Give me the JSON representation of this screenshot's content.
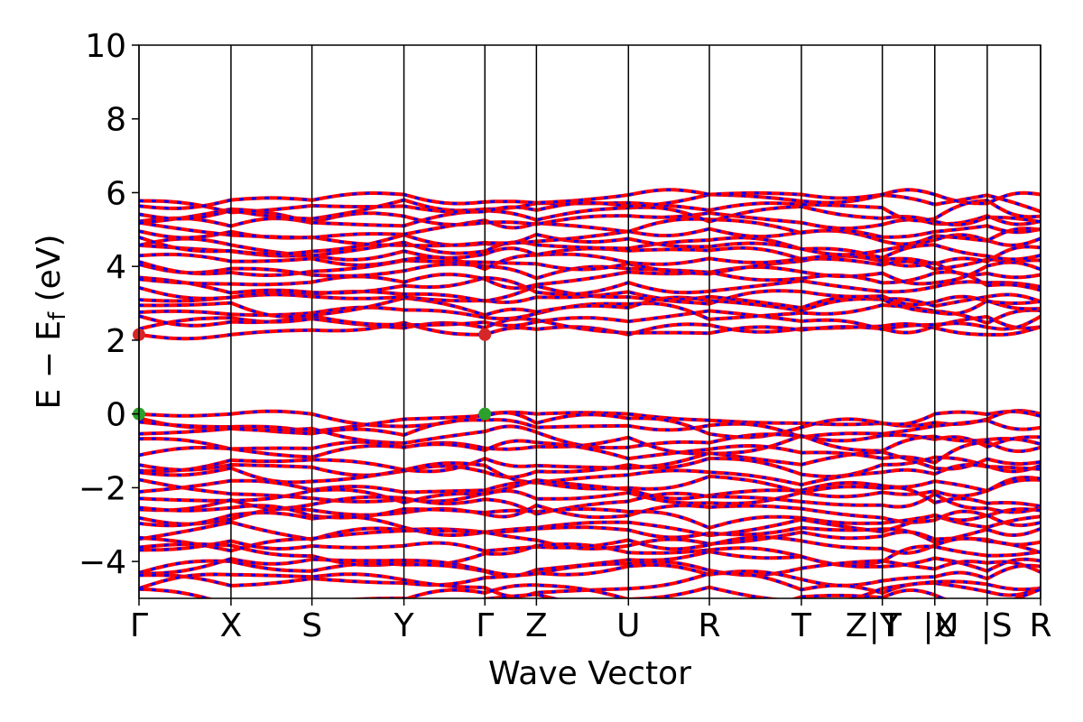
{
  "chart_data": {
    "type": "line",
    "title": "",
    "xlabel": "Wave Vector",
    "ylabel": "E − E_f (eV)",
    "ylabel_parts": {
      "main": "E − E",
      "sub": "f",
      "unit": " (eV)"
    },
    "ylim": [
      -5,
      10
    ],
    "yticks": [
      {
        "value": 10,
        "label": "10"
      },
      {
        "value": 8,
        "label": "8"
      },
      {
        "value": 6,
        "label": "6"
      },
      {
        "value": 4,
        "label": "4"
      },
      {
        "value": 2,
        "label": "2"
      },
      {
        "value": 0,
        "label": "0"
      },
      {
        "value": -2,
        "label": "−2"
      },
      {
        "value": -4,
        "label": "−4"
      }
    ],
    "kpath_positions": [
      0,
      1.0,
      1.88,
      2.88,
      3.76,
      4.32,
      5.32,
      6.2,
      7.2,
      8.08,
      8.65,
      9.22,
      9.8
    ],
    "kpath_labels": [
      {
        "label": "Γ",
        "pos": 0
      },
      {
        "label": "X",
        "pos": 1.0
      },
      {
        "label": "S",
        "pos": 1.88
      },
      {
        "label": "Y",
        "pos": 2.88
      },
      {
        "label": "Γ",
        "pos": 3.76
      },
      {
        "label": "Z",
        "pos": 4.32
      },
      {
        "label": "U",
        "pos": 5.32
      },
      {
        "label": "R",
        "pos": 6.2
      },
      {
        "label": "T",
        "pos": 7.2
      },
      {
        "label": "Z",
        "pos": 7.8
      },
      {
        "label": "|Y",
        "pos": 8.1
      },
      {
        "label": "T",
        "pos": 8.18
      },
      {
        "label": "|X",
        "pos": 8.7
      },
      {
        "label": "U",
        "pos": 8.78
      },
      {
        "label": "|S",
        "pos": 9.32
      },
      {
        "label": "R",
        "pos": 9.8
      }
    ],
    "band_style": {
      "spin_up_color": "#ff0000",
      "spin_down_color": "#0000ff",
      "line_width": 3
    },
    "markers": [
      {
        "name": "CBM",
        "color": "#d62728",
        "x": 0,
        "y": 2.15
      },
      {
        "name": "CBM",
        "color": "#d62728",
        "x": 3.76,
        "y": 2.15
      },
      {
        "name": "VBM",
        "color": "#2ca02c",
        "x": 0,
        "y": 0.0
      },
      {
        "name": "VBM",
        "color": "#2ca02c",
        "x": 3.76,
        "y": 0.0
      }
    ],
    "valence_band_maximum_eV": 0.0,
    "conduction_band_minimum_eV": 2.15,
    "conduction_band_range_eV": [
      2.15,
      5.95
    ],
    "valence_band_range_eV": [
      -5,
      0.0
    ],
    "grid": false,
    "legend": "none"
  }
}
